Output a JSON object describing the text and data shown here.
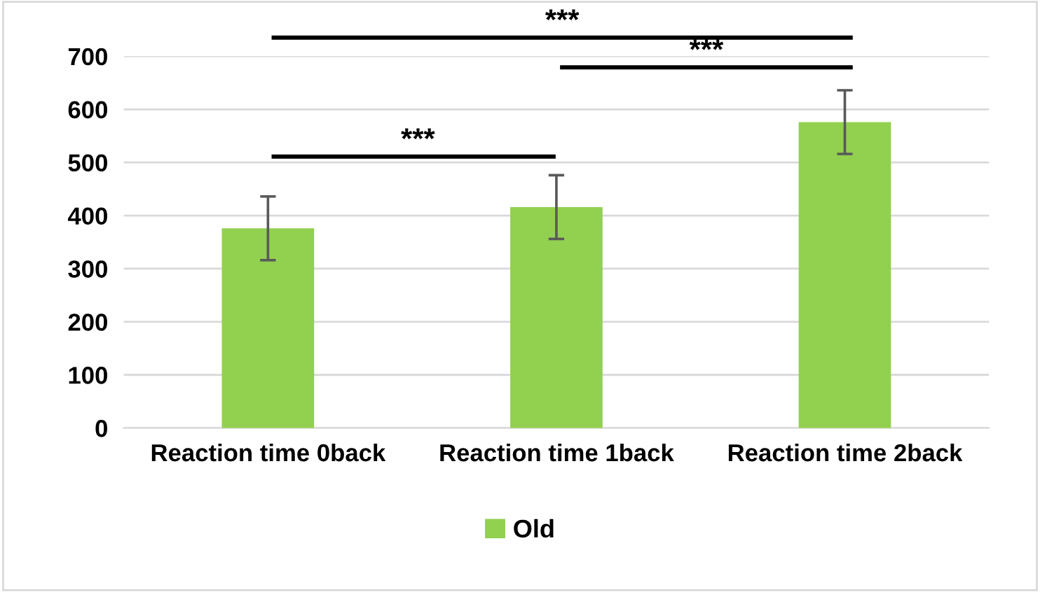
{
  "chart_data": {
    "type": "bar",
    "categories": [
      "Reaction time 0back",
      "Reaction time 1back",
      "Reaction time 2back"
    ],
    "series": [
      {
        "name": "Old",
        "color": "#92d050",
        "values": [
          376,
          416,
          576
        ],
        "errors": [
          60,
          60,
          60
        ]
      }
    ],
    "ylim": [
      0,
      700
    ],
    "yticks": [
      0,
      100,
      200,
      300,
      400,
      500,
      600,
      700
    ],
    "grid": "y",
    "legend": "bottom",
    "annotations": [
      "***",
      "***",
      "***"
    ]
  }
}
